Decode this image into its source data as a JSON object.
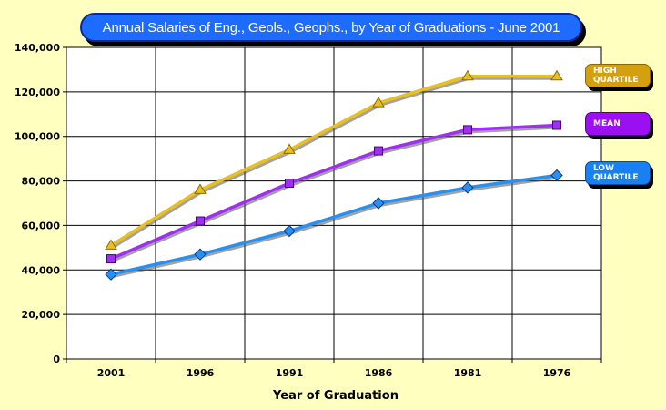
{
  "chart_data": {
    "type": "line",
    "title": "Annual Salaries of Eng., Geols., Geophs., by Year of Graduations - June 2001",
    "xlabel": "Year of Graduation",
    "ylabel": "",
    "categories": [
      "2001",
      "1996",
      "1991",
      "1986",
      "1981",
      "1976"
    ],
    "ylim": [
      0,
      140000
    ],
    "yticks": [
      0,
      20000,
      40000,
      60000,
      80000,
      100000,
      120000,
      140000
    ],
    "ytick_labels": [
      "0",
      "20,000",
      "40,000",
      "60,000",
      "80,000",
      "100,000",
      "120,000",
      "140,000"
    ],
    "grid": true,
    "legend_position": "right",
    "series": [
      {
        "key": "high",
        "name": "HIGH\nQUARTILE",
        "color": "#e8c020",
        "marker": "triangle",
        "values": [
          51000,
          76000,
          94000,
          115000,
          127000,
          127000
        ]
      },
      {
        "key": "mean",
        "name": "MEAN",
        "color": "#a030f0",
        "marker": "square",
        "values": [
          45000,
          62000,
          79000,
          93500,
          103000,
          105000
        ]
      },
      {
        "key": "low",
        "name": "LOW\nQUARTILE",
        "color": "#2a90f0",
        "marker": "diamond",
        "values": [
          38000,
          47000,
          57500,
          70000,
          77000,
          82500
        ]
      }
    ]
  }
}
